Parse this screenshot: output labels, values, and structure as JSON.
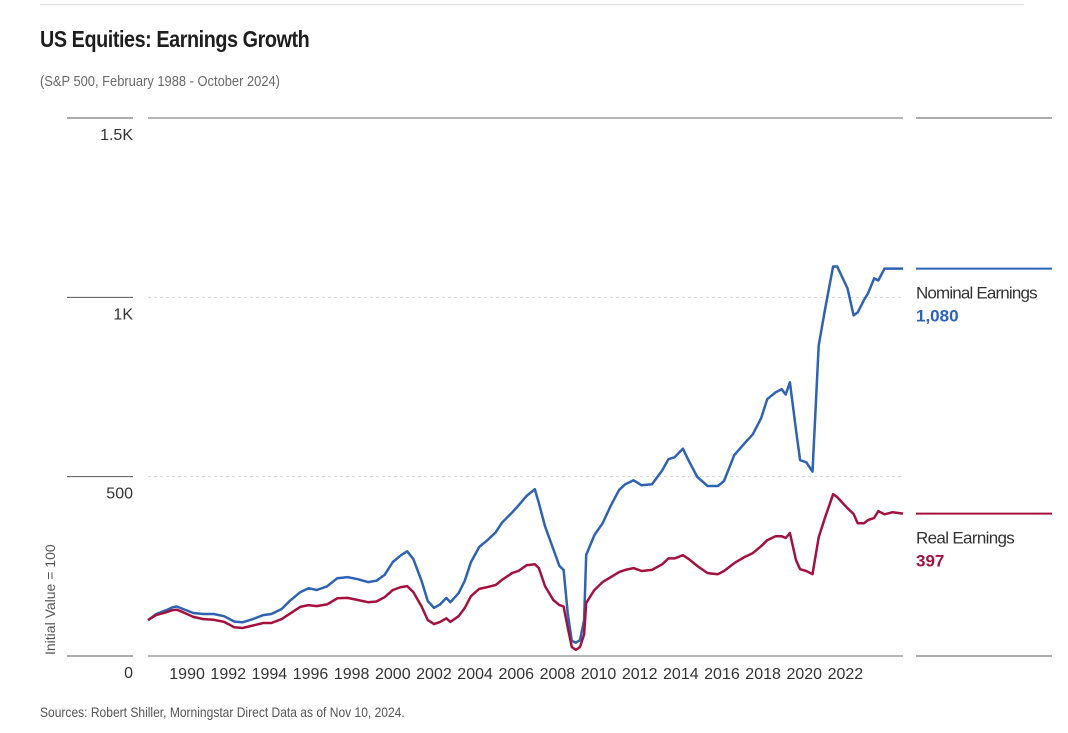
{
  "header": {
    "title": "US Equities: Earnings Growth",
    "subtitle": "(S&P 500, February 1988 - October 2024)"
  },
  "footer": {
    "source": "Sources: Robert Shiller, Morningstar Direct Data as of Nov 10, 2024."
  },
  "chart_data": {
    "type": "line",
    "title": "US Equities: Earnings Growth",
    "subtitle": "(S&P 500, February 1988 - October 2024)",
    "xlabel": "",
    "ylabel": "Initial Value = 100",
    "xlim": [
      1988.1,
      2024.8
    ],
    "ylim": [
      0,
      1500
    ],
    "yticks": [
      0,
      500,
      1000,
      1500
    ],
    "ytick_labels": [
      "0",
      "500",
      "1K",
      "1.5K"
    ],
    "xticks": [
      1990,
      1992,
      1994,
      1996,
      1998,
      2000,
      2002,
      2004,
      2006,
      2008,
      2010,
      2012,
      2014,
      2016,
      2018,
      2020,
      2022
    ],
    "xtick_labels": [
      "1990",
      "1992",
      "1994",
      "1996",
      "1998",
      "2000",
      "2002",
      "2004",
      "2006",
      "2008",
      "2010",
      "2012",
      "2014",
      "2016",
      "2018",
      "2020",
      "2022"
    ],
    "grid": "horizontal-dotted",
    "legend": "right",
    "series": [
      {
        "name": "Nominal Earnings",
        "end_label": "1,080",
        "color": "#2e62b5",
        "points": [
          [
            1988.1,
            100
          ],
          [
            1988.5,
            117
          ],
          [
            1989.0,
            128
          ],
          [
            1989.3,
            136
          ],
          [
            1989.5,
            138
          ],
          [
            1989.8,
            131
          ],
          [
            1990.3,
            120
          ],
          [
            1990.8,
            117
          ],
          [
            1991.3,
            117
          ],
          [
            1991.8,
            111
          ],
          [
            1992.3,
            96
          ],
          [
            1992.7,
            94
          ],
          [
            1993.2,
            103
          ],
          [
            1993.7,
            114
          ],
          [
            1994.1,
            117
          ],
          [
            1994.6,
            131
          ],
          [
            1995.0,
            154
          ],
          [
            1995.5,
            178
          ],
          [
            1995.9,
            189
          ],
          [
            1996.3,
            184
          ],
          [
            1996.8,
            194
          ],
          [
            1997.3,
            217
          ],
          [
            1997.8,
            220
          ],
          [
            1998.3,
            214
          ],
          [
            1998.8,
            206
          ],
          [
            1999.2,
            210
          ],
          [
            1999.6,
            226
          ],
          [
            2000.0,
            262
          ],
          [
            2000.4,
            281
          ],
          [
            2000.7,
            292
          ],
          [
            2001.0,
            270
          ],
          [
            2001.4,
            209
          ],
          [
            2001.7,
            153
          ],
          [
            2002.0,
            134
          ],
          [
            2002.3,
            144
          ],
          [
            2002.6,
            162
          ],
          [
            2002.8,
            150
          ],
          [
            2003.2,
            175
          ],
          [
            2003.5,
            210
          ],
          [
            2003.8,
            262
          ],
          [
            2004.2,
            304
          ],
          [
            2004.6,
            323
          ],
          [
            2005.0,
            345
          ],
          [
            2005.3,
            371
          ],
          [
            2005.8,
            400
          ],
          [
            2006.1,
            419
          ],
          [
            2006.5,
            446
          ],
          [
            2006.9,
            465
          ],
          [
            2007.1,
            426
          ],
          [
            2007.4,
            362
          ],
          [
            2007.8,
            298
          ],
          [
            2008.1,
            251
          ],
          [
            2008.3,
            240
          ],
          [
            2008.5,
            120
          ],
          [
            2008.7,
            42
          ],
          [
            2008.9,
            37
          ],
          [
            2009.1,
            44
          ],
          [
            2009.3,
            100
          ],
          [
            2009.4,
            282
          ],
          [
            2009.8,
            337
          ],
          [
            2010.2,
            370
          ],
          [
            2010.6,
            420
          ],
          [
            2011.0,
            463
          ],
          [
            2011.3,
            479
          ],
          [
            2011.7,
            490
          ],
          [
            2012.1,
            476
          ],
          [
            2012.6,
            479
          ],
          [
            2013.1,
            518
          ],
          [
            2013.4,
            549
          ],
          [
            2013.7,
            554
          ],
          [
            2014.1,
            578
          ],
          [
            2014.4,
            543
          ],
          [
            2014.8,
            499
          ],
          [
            2015.3,
            474
          ],
          [
            2015.8,
            474
          ],
          [
            2016.1,
            488
          ],
          [
            2016.6,
            560
          ],
          [
            2017.1,
            593
          ],
          [
            2017.5,
            618
          ],
          [
            2017.9,
            663
          ],
          [
            2018.2,
            716
          ],
          [
            2018.6,
            735
          ],
          [
            2018.9,
            744
          ],
          [
            2019.1,
            729
          ],
          [
            2019.3,
            763
          ],
          [
            2019.6,
            630
          ],
          [
            2019.8,
            546
          ],
          [
            2020.1,
            540
          ],
          [
            2020.4,
            514
          ],
          [
            2020.7,
            866
          ],
          [
            2021.0,
            963
          ],
          [
            2021.4,
            1086
          ],
          [
            2021.6,
            1086
          ],
          [
            2022.1,
            1025
          ],
          [
            2022.4,
            950
          ],
          [
            2022.6,
            958
          ],
          [
            2022.9,
            992
          ],
          [
            2023.1,
            1011
          ],
          [
            2023.4,
            1053
          ],
          [
            2023.6,
            1047
          ],
          [
            2023.9,
            1080
          ],
          [
            2024.3,
            1080
          ],
          [
            2024.8,
            1080
          ]
        ]
      },
      {
        "name": "Real Earnings",
        "end_label": "397",
        "color": "#a3123f",
        "points": [
          [
            1988.1,
            100
          ],
          [
            1988.5,
            114
          ],
          [
            1989.0,
            122
          ],
          [
            1989.3,
            128
          ],
          [
            1989.5,
            129
          ],
          [
            1989.8,
            122
          ],
          [
            1990.3,
            109
          ],
          [
            1990.8,
            103
          ],
          [
            1991.3,
            101
          ],
          [
            1991.8,
            95
          ],
          [
            1992.3,
            80
          ],
          [
            1992.7,
            78
          ],
          [
            1993.2,
            85
          ],
          [
            1993.7,
            92
          ],
          [
            1994.1,
            92
          ],
          [
            1994.6,
            103
          ],
          [
            1995.0,
            118
          ],
          [
            1995.5,
            137
          ],
          [
            1995.9,
            142
          ],
          [
            1996.3,
            139
          ],
          [
            1996.8,
            144
          ],
          [
            1997.3,
            161
          ],
          [
            1997.8,
            162
          ],
          [
            1998.3,
            156
          ],
          [
            1998.8,
            150
          ],
          [
            1999.2,
            152
          ],
          [
            1999.6,
            164
          ],
          [
            2000.0,
            184
          ],
          [
            2000.4,
            192
          ],
          [
            2000.7,
            195
          ],
          [
            2001.0,
            178
          ],
          [
            2001.4,
            138
          ],
          [
            2001.7,
            100
          ],
          [
            2002.0,
            89
          ],
          [
            2002.3,
            95
          ],
          [
            2002.6,
            105
          ],
          [
            2002.8,
            95
          ],
          [
            2003.2,
            111
          ],
          [
            2003.5,
            134
          ],
          [
            2003.8,
            167
          ],
          [
            2004.2,
            187
          ],
          [
            2004.6,
            192
          ],
          [
            2005.0,
            198
          ],
          [
            2005.3,
            212
          ],
          [
            2005.8,
            231
          ],
          [
            2006.1,
            237
          ],
          [
            2006.5,
            253
          ],
          [
            2006.9,
            256
          ],
          [
            2007.1,
            245
          ],
          [
            2007.4,
            195
          ],
          [
            2007.8,
            156
          ],
          [
            2008.1,
            142
          ],
          [
            2008.3,
            138
          ],
          [
            2008.5,
            80
          ],
          [
            2008.7,
            25
          ],
          [
            2008.9,
            17
          ],
          [
            2009.1,
            25
          ],
          [
            2009.3,
            60
          ],
          [
            2009.4,
            148
          ],
          [
            2009.8,
            184
          ],
          [
            2010.2,
            206
          ],
          [
            2010.6,
            220
          ],
          [
            2011.0,
            234
          ],
          [
            2011.3,
            240
          ],
          [
            2011.7,
            245
          ],
          [
            2012.1,
            237
          ],
          [
            2012.6,
            240
          ],
          [
            2013.1,
            256
          ],
          [
            2013.4,
            272
          ],
          [
            2013.7,
            272
          ],
          [
            2014.1,
            281
          ],
          [
            2014.4,
            270
          ],
          [
            2014.8,
            251
          ],
          [
            2015.3,
            231
          ],
          [
            2015.8,
            228
          ],
          [
            2016.1,
            237
          ],
          [
            2016.6,
            259
          ],
          [
            2017.1,
            276
          ],
          [
            2017.5,
            287
          ],
          [
            2017.9,
            306
          ],
          [
            2018.2,
            323
          ],
          [
            2018.6,
            334
          ],
          [
            2018.9,
            334
          ],
          [
            2019.1,
            329
          ],
          [
            2019.3,
            343
          ],
          [
            2019.6,
            267
          ],
          [
            2019.8,
            242
          ],
          [
            2020.1,
            237
          ],
          [
            2020.4,
            228
          ],
          [
            2020.7,
            331
          ],
          [
            2021.0,
            384
          ],
          [
            2021.4,
            451
          ],
          [
            2021.6,
            443
          ],
          [
            2022.1,
            412
          ],
          [
            2022.4,
            396
          ],
          [
            2022.6,
            370
          ],
          [
            2022.9,
            370
          ],
          [
            2023.1,
            379
          ],
          [
            2023.4,
            385
          ],
          [
            2023.6,
            404
          ],
          [
            2023.9,
            395
          ],
          [
            2024.3,
            401
          ],
          [
            2024.8,
            397
          ]
        ]
      }
    ]
  }
}
